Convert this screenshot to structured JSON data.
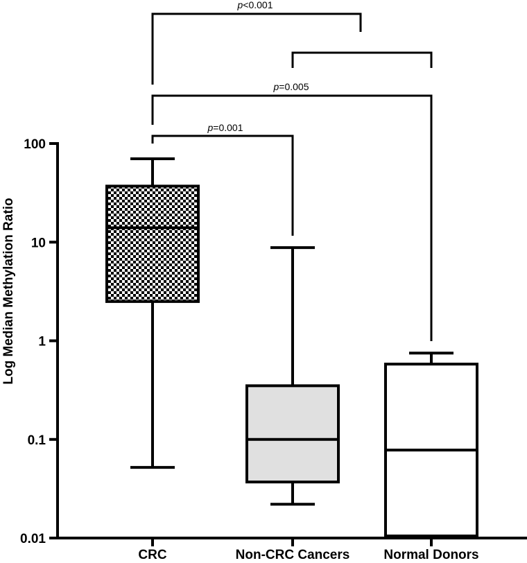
{
  "chart_data": {
    "type": "box",
    "ylabel": "Log Median Methylation Ratio",
    "y_scale": "log",
    "ylim": [
      0.01,
      100
    ],
    "y_ticks": [
      {
        "value": 0.01,
        "label": "0.01"
      },
      {
        "value": 0.1,
        "label": "0.1"
      },
      {
        "value": 1,
        "label": "1"
      },
      {
        "value": 10,
        "label": "10"
      },
      {
        "value": 100,
        "label": "100"
      }
    ],
    "categories": [
      "CRC",
      "Non-CRC Cancers",
      "Normal Donors"
    ],
    "boxes": [
      {
        "category": "CRC",
        "min": 0.052,
        "q1": 2.5,
        "median": 14,
        "q3": 37,
        "max": 70,
        "fill": "checker"
      },
      {
        "category": "Non-CRC Cancers",
        "min": 0.022,
        "q1": 0.037,
        "median": 0.1,
        "q3": 0.35,
        "max": 8.8,
        "fill": "#e0e0e0"
      },
      {
        "category": "Normal Donors",
        "min": 0.0105,
        "q1": 0.0105,
        "median": 0.078,
        "q3": 0.58,
        "max": 0.75,
        "fill": "#ffffff"
      }
    ],
    "significance": [
      {
        "from": "CRC",
        "to": "Non-CRC Cancers",
        "p_prefix": "p",
        "p_value": "=0.001"
      },
      {
        "from": "CRC",
        "to": "Normal Donors",
        "p_prefix": "p",
        "p_value": "=0.005"
      },
      {
        "from": "CRC",
        "to": "Non-CRC Cancers + Normal Donors",
        "p_prefix": "p",
        "p_value": "<0.001"
      }
    ],
    "colors": {
      "axis": "#000000",
      "box_gray": "#e0e0e0"
    }
  }
}
